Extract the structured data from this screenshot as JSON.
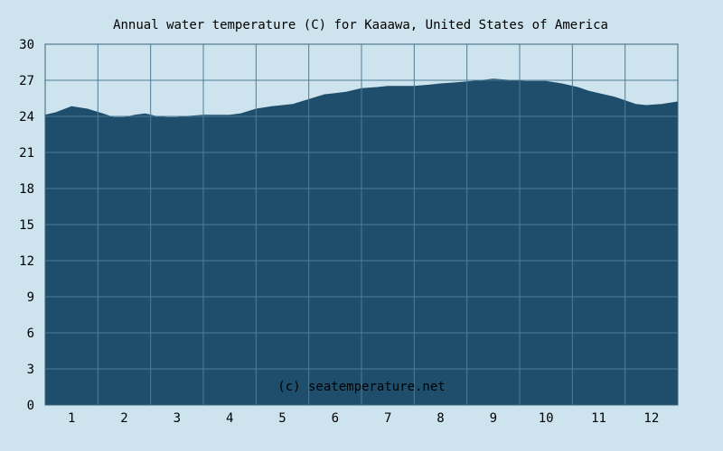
{
  "chart_data": {
    "type": "area",
    "title": "Annual water temperature (C) for Kaaawa, United States of America",
    "xlabel": "",
    "ylabel": "",
    "watermark": "(c) seatemperature.net",
    "x_ticks": [
      "1",
      "2",
      "3",
      "4",
      "5",
      "6",
      "7",
      "8",
      "9",
      "10",
      "11",
      "12"
    ],
    "y_ticks": [
      "0",
      "3",
      "6",
      "9",
      "12",
      "15",
      "18",
      "21",
      "24",
      "27",
      "30"
    ],
    "xlim": [
      0.5,
      12.5
    ],
    "ylim": [
      0,
      30
    ],
    "grid": true,
    "series": [
      {
        "x": [
          0.5,
          0.7,
          1.0,
          1.3,
          1.6,
          1.8,
          2.0,
          2.2,
          2.4,
          2.6,
          2.8,
          3.0,
          3.2,
          3.5,
          3.8,
          4.0,
          4.2,
          4.5,
          4.8,
          5.0,
          5.2,
          5.5,
          5.8,
          6.0,
          6.2,
          6.5,
          6.8,
          7.0,
          7.2,
          7.5,
          7.8,
          8.0,
          8.3,
          8.6,
          9.0,
          9.3,
          9.6,
          10.0,
          10.3,
          10.6,
          10.8,
          11.0,
          11.3,
          11.5,
          11.7,
          11.9,
          12.2,
          12.5
        ],
        "values": [
          24.1,
          24.3,
          24.8,
          24.6,
          24.2,
          23.9,
          23.9,
          24.1,
          24.2,
          24.0,
          23.9,
          23.9,
          24.0,
          24.1,
          24.1,
          24.1,
          24.2,
          24.6,
          24.8,
          24.9,
          25.0,
          25.4,
          25.8,
          25.9,
          26.0,
          26.3,
          26.4,
          26.5,
          26.5,
          26.5,
          26.6,
          26.7,
          26.8,
          26.9,
          27.1,
          27.0,
          26.9,
          26.9,
          26.7,
          26.4,
          26.1,
          25.9,
          25.6,
          25.3,
          25.0,
          24.9,
          25.0,
          25.2
        ]
      }
    ],
    "colors": {
      "background": "#cde3ee",
      "area_fill": "#1e4e6b",
      "plot_border": "#3c6478",
      "grid_line": "#4f7c94"
    }
  }
}
